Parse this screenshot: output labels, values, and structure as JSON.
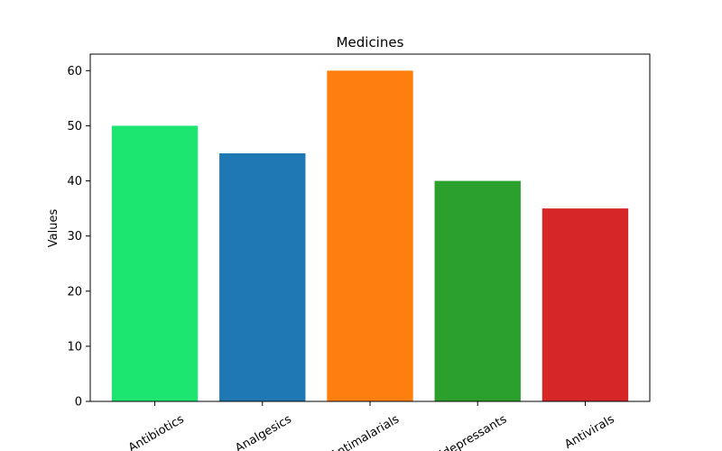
{
  "chart_data": {
    "type": "bar",
    "title": "Medicines",
    "xlabel": "",
    "ylabel": "Values",
    "categories": [
      "Antibiotics",
      "Analgesics",
      "Antimalarials",
      "Antidepressants",
      "Antivirals"
    ],
    "values": [
      50,
      45,
      60,
      40,
      35
    ],
    "colors": [
      "#1ce570",
      "#1f77b4",
      "#ff7f0e",
      "#2ca02c",
      "#d62728"
    ],
    "ylim": [
      0,
      63
    ],
    "yticks": [
      0,
      10,
      20,
      30,
      40,
      50,
      60
    ],
    "grid": false,
    "legend": "none"
  }
}
